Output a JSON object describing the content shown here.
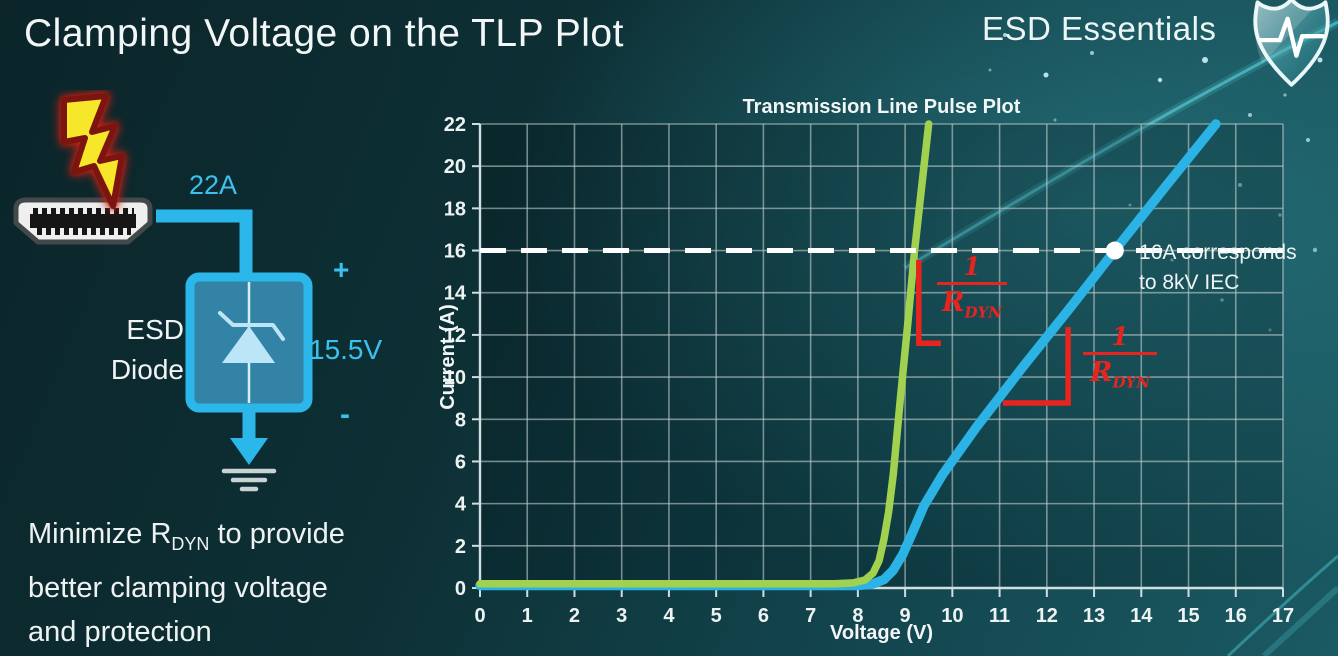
{
  "slide": {
    "title": "Clamping Voltage on the TLP Plot",
    "brand": "ESD Essentials"
  },
  "diagram": {
    "accent_color": "#2bb7ea",
    "surge_current_label": "22A",
    "device_label_line1": "ESD",
    "device_label_line2": "Diode",
    "plus_sign": "+",
    "clamp_voltage_label": "15.5V",
    "minus_sign": "-"
  },
  "note": {
    "line1_pre": "Minimize R",
    "line1_sub": "DYN",
    "line1_post": " to provide",
    "line2": "better clamping voltage",
    "line3": "and protection"
  },
  "chart_data": {
    "type": "line",
    "title": "Transmission Line Pulse Plot",
    "xlabel": "Voltage (V)",
    "ylabel": "Current (A)",
    "xlim": [
      0,
      17
    ],
    "ylim": [
      0,
      22
    ],
    "x_ticks": [
      0,
      1,
      2,
      3,
      4,
      5,
      6,
      7,
      8,
      9,
      10,
      11,
      12,
      13,
      14,
      15,
      16,
      17
    ],
    "y_ticks": [
      0,
      2,
      4,
      6,
      8,
      10,
      12,
      14,
      16,
      18,
      20,
      22
    ],
    "grid": true,
    "grid_color": "rgba(190,205,205,0.6)",
    "series": [
      {
        "name": "blue-curve",
        "color": "#2bb3e6",
        "width": 9.5,
        "points": [
          [
            0,
            0.12
          ],
          [
            8.0,
            0.12
          ],
          [
            8.3,
            0.18
          ],
          [
            8.55,
            0.4
          ],
          [
            8.75,
            0.85
          ],
          [
            8.95,
            1.6
          ],
          [
            9.15,
            2.6
          ],
          [
            9.4,
            3.9
          ],
          [
            9.8,
            5.4
          ],
          [
            10.5,
            7.6
          ],
          [
            11.5,
            10.5
          ],
          [
            12.5,
            13.3
          ],
          [
            13.44,
            16.0
          ],
          [
            14.5,
            19.0
          ],
          [
            15.58,
            22
          ]
        ]
      },
      {
        "name": "green-curve",
        "color": "#a2d14f",
        "width": 7.5,
        "points": [
          [
            0,
            0.2
          ],
          [
            7.5,
            0.2
          ],
          [
            7.9,
            0.24
          ],
          [
            8.15,
            0.38
          ],
          [
            8.32,
            0.7
          ],
          [
            8.45,
            1.3
          ],
          [
            8.55,
            2.3
          ],
          [
            8.65,
            3.6
          ],
          [
            8.75,
            5.4
          ],
          [
            8.9,
            9.0
          ],
          [
            9.05,
            12.4
          ],
          [
            9.2,
            16.0
          ],
          [
            9.35,
            19.0
          ],
          [
            9.5,
            22
          ]
        ]
      }
    ],
    "reference_line": {
      "y": 16,
      "color": "#ffffff",
      "style": "dashed"
    },
    "marker": {
      "x": 13.44,
      "y": 16,
      "label_line1": "16A corresponds",
      "label_line2": "to 8kV IEC"
    },
    "slope_annotations": [
      {
        "numerator": "1",
        "denominator_main": "R",
        "denominator_sub": "DYN",
        "color": "#e8241f",
        "bracket": [
          [
            9.29,
            15.55
          ],
          [
            9.29,
            11.6
          ],
          [
            9.76,
            11.6
          ]
        ]
      },
      {
        "numerator": "1",
        "denominator_main": "R",
        "denominator_sub": "DYN",
        "color": "#e8241f",
        "bracket": [
          [
            11.07,
            8.77
          ],
          [
            12.45,
            8.77
          ],
          [
            12.45,
            12.37
          ]
        ]
      }
    ]
  }
}
